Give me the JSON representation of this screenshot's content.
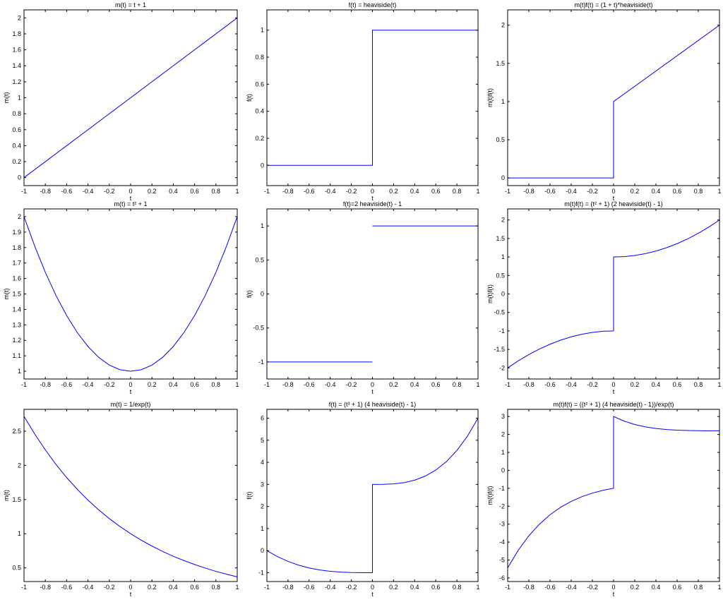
{
  "figure": {
    "line_color": "#0000ff",
    "axis_color": "#000000",
    "background": "#ffffff"
  },
  "chart_data": [
    {
      "type": "line",
      "title": "m(t) = t + 1",
      "xlabel": "t",
      "ylabel": "m(t)",
      "xlim": [
        -1,
        1
      ],
      "ylim": [
        -0.1,
        2.1
      ],
      "xticks": [
        -1,
        -0.8,
        -0.6,
        -0.4,
        -0.2,
        0,
        0.2,
        0.4,
        0.6,
        0.8,
        1
      ],
      "xtick_labels": [
        "-1",
        "-0.8",
        "-0.6",
        "-0.4",
        "-0.2",
        "0",
        "0.2",
        "0.4",
        "0.6",
        "0.8",
        "1"
      ],
      "yticks": [
        0,
        0.2,
        0.4,
        0.6,
        0.8,
        1,
        1.2,
        1.4,
        1.6,
        1.8,
        2
      ],
      "ytick_labels": [
        "0",
        "0.2",
        "0.4",
        "0.6",
        "0.8",
        "1",
        "1.2",
        "1.4",
        "1.6",
        "1.8",
        "2"
      ],
      "series": [
        {
          "x": [
            -1,
            1
          ],
          "y": [
            0,
            2
          ]
        }
      ]
    },
    {
      "type": "line",
      "title": "f(t) = heaviside(t)",
      "xlabel": "t",
      "ylabel": "f(t)",
      "xlim": [
        -1,
        1
      ],
      "ylim": [
        -0.15,
        1.15
      ],
      "xticks": [
        -1,
        -0.8,
        -0.6,
        -0.4,
        -0.2,
        0,
        0.2,
        0.4,
        0.6,
        0.8,
        1
      ],
      "xtick_labels": [
        "-1",
        "-0.8",
        "-0.6",
        "-0.4",
        "-0.2",
        "0",
        "0.2",
        "0.4",
        "0.6",
        "0.8",
        "1"
      ],
      "yticks": [
        0,
        0.2,
        0.4,
        0.6,
        0.8,
        1
      ],
      "ytick_labels": [
        "0",
        "0.2",
        "0.4",
        "0.6",
        "0.8",
        "1"
      ],
      "series": [
        {
          "x": [
            -1,
            0,
            0,
            1
          ],
          "y": [
            0,
            0,
            1,
            1
          ]
        }
      ]
    },
    {
      "type": "line",
      "title": "m(t)f(t) = (1 + t)*heaviside(t)",
      "xlabel": "t",
      "ylabel": "m(t)f(t)",
      "xlim": [
        -1,
        1
      ],
      "ylim": [
        -0.1,
        2.2
      ],
      "xticks": [
        -1,
        -0.8,
        -0.6,
        -0.4,
        -0.2,
        0,
        0.2,
        0.4,
        0.6,
        0.8,
        1
      ],
      "xtick_labels": [
        "-1",
        "-0.8",
        "-0.6",
        "-0.4",
        "-0.2",
        "0",
        "0.2",
        "0.4",
        "0.6",
        "0.8",
        "1"
      ],
      "yticks": [
        0,
        0.5,
        1,
        1.5,
        2
      ],
      "ytick_labels": [
        "0",
        "0.5",
        "1",
        "1.5",
        "2"
      ],
      "series": [
        {
          "x": [
            -1,
            0,
            0,
            1
          ],
          "y": [
            0,
            0,
            1,
            2
          ]
        }
      ]
    },
    {
      "type": "line",
      "title": "m(t) = t² + 1",
      "xlabel": "t",
      "ylabel": "m(t)",
      "xlim": [
        -1,
        1
      ],
      "ylim": [
        0.95,
        2.05
      ],
      "xticks": [
        -1,
        -0.8,
        -0.6,
        -0.4,
        -0.2,
        0,
        0.2,
        0.4,
        0.6,
        0.8,
        1
      ],
      "xtick_labels": [
        "-1",
        "-0.8",
        "-0.6",
        "-0.4",
        "-0.2",
        "0",
        "0.2",
        "0.4",
        "0.6",
        "0.8",
        "1"
      ],
      "yticks": [
        1,
        1.1,
        1.2,
        1.3,
        1.4,
        1.5,
        1.6,
        1.7,
        1.8,
        1.9,
        2
      ],
      "ytick_labels": [
        "1",
        "1.1",
        "1.2",
        "1.3",
        "1.4",
        "1.5",
        "1.6",
        "1.7",
        "1.8",
        "1.9",
        "2"
      ],
      "series": [
        {
          "x": [
            -1,
            -0.9,
            -0.8,
            -0.7,
            -0.6,
            -0.5,
            -0.4,
            -0.3,
            -0.2,
            -0.1,
            0,
            0.1,
            0.2,
            0.3,
            0.4,
            0.5,
            0.6,
            0.7,
            0.8,
            0.9,
            1
          ],
          "y": [
            2,
            1.81,
            1.64,
            1.49,
            1.36,
            1.25,
            1.16,
            1.09,
            1.04,
            1.01,
            1,
            1.01,
            1.04,
            1.09,
            1.16,
            1.25,
            1.36,
            1.49,
            1.64,
            1.81,
            2
          ]
        }
      ]
    },
    {
      "type": "line",
      "title": "f(t)=2 heaviside(t) - 1",
      "xlabel": "t",
      "ylabel": "f(t)",
      "xlim": [
        -1,
        1
      ],
      "ylim": [
        -1.25,
        1.25
      ],
      "xticks": [
        -1,
        -0.8,
        -0.6,
        -0.4,
        -0.2,
        0,
        0.2,
        0.4,
        0.6,
        0.8,
        1
      ],
      "xtick_labels": [
        "-1",
        "-0.8",
        "-0.6",
        "-0.4",
        "-0.2",
        "0",
        "0.2",
        "0.4",
        "0.6",
        "0.8",
        "1"
      ],
      "yticks": [
        -1,
        -0.5,
        0,
        0.5,
        1
      ],
      "ytick_labels": [
        "-1",
        "-0.5",
        "0",
        "0.5",
        "1"
      ],
      "series": [
        {
          "x": [
            -1,
            0
          ],
          "y": [
            -1,
            -1
          ]
        },
        {
          "x": [
            0,
            1
          ],
          "y": [
            1,
            1
          ]
        }
      ]
    },
    {
      "type": "line",
      "title": "m(t)f(t) = (t² + 1) (2 heaviside(t) - 1)",
      "xlabel": "t",
      "ylabel": "m(t)f(t)",
      "xlim": [
        -1,
        1
      ],
      "ylim": [
        -2.3,
        2.3
      ],
      "xticks": [
        -1,
        -0.8,
        -0.6,
        -0.4,
        -0.2,
        0,
        0.2,
        0.4,
        0.6,
        0.8,
        1
      ],
      "xtick_labels": [
        "-1",
        "-0.8",
        "-0.6",
        "-0.4",
        "-0.2",
        "0",
        "0.2",
        "0.4",
        "0.6",
        "0.8",
        "1"
      ],
      "yticks": [
        -2,
        -1.5,
        -1,
        -0.5,
        0,
        0.5,
        1,
        1.5,
        2
      ],
      "ytick_labels": [
        "-2",
        "-1.5",
        "-1",
        "-0.5",
        "0",
        "0.5",
        "1",
        "1.5",
        "2"
      ],
      "series": [
        {
          "x": [
            -1,
            -0.9,
            -0.8,
            -0.7,
            -0.6,
            -0.5,
            -0.4,
            -0.3,
            -0.2,
            -0.1,
            0,
            0,
            0.1,
            0.2,
            0.3,
            0.4,
            0.5,
            0.6,
            0.7,
            0.8,
            0.9,
            1
          ],
          "y": [
            -2,
            -1.81,
            -1.64,
            -1.49,
            -1.36,
            -1.25,
            -1.16,
            -1.09,
            -1.04,
            -1.01,
            -1,
            1,
            1.01,
            1.04,
            1.09,
            1.16,
            1.25,
            1.36,
            1.49,
            1.64,
            1.81,
            2
          ]
        }
      ]
    },
    {
      "type": "line",
      "title": "m(t) = 1/exp(t)",
      "xlabel": "t",
      "ylabel": "m(t)",
      "xlim": [
        -1,
        1
      ],
      "ylim": [
        0.3,
        2.82
      ],
      "xticks": [
        -1,
        -0.8,
        -0.6,
        -0.4,
        -0.2,
        0,
        0.2,
        0.4,
        0.6,
        0.8,
        1
      ],
      "xtick_labels": [
        "-1",
        "-0.8",
        "-0.6",
        "-0.4",
        "-0.2",
        "0",
        "0.2",
        "0.4",
        "0.6",
        "0.8",
        "1"
      ],
      "yticks": [
        0.5,
        1,
        1.5,
        2,
        2.5
      ],
      "ytick_labels": [
        "0.5",
        "1",
        "1.5",
        "2",
        "2.5"
      ],
      "series": [
        {
          "x": [
            -1,
            -0.9,
            -0.8,
            -0.7,
            -0.6,
            -0.5,
            -0.4,
            -0.3,
            -0.2,
            -0.1,
            0,
            0.1,
            0.2,
            0.3,
            0.4,
            0.5,
            0.6,
            0.7,
            0.8,
            0.9,
            1
          ],
          "y": [
            2.718,
            2.46,
            2.226,
            2.014,
            1.822,
            1.649,
            1.492,
            1.35,
            1.221,
            1.105,
            1,
            0.905,
            0.819,
            0.741,
            0.67,
            0.607,
            0.549,
            0.497,
            0.449,
            0.407,
            0.368
          ]
        }
      ]
    },
    {
      "type": "line",
      "title": "f(t) = (t³ + 1) (4 heaviside(t) - 1)",
      "xlabel": "t",
      "ylabel": "f(t)",
      "xlim": [
        -1,
        1
      ],
      "ylim": [
        -1.4,
        6.4
      ],
      "xticks": [
        -1,
        -0.8,
        -0.6,
        -0.4,
        -0.2,
        0,
        0.2,
        0.4,
        0.6,
        0.8,
        1
      ],
      "xtick_labels": [
        "-1",
        "-0.8",
        "-0.6",
        "-0.4",
        "-0.2",
        "0",
        "0.2",
        "0.4",
        "0.6",
        "0.8",
        "1"
      ],
      "yticks": [
        -1,
        0,
        1,
        2,
        3,
        4,
        5,
        6
      ],
      "ytick_labels": [
        "-1",
        "0",
        "1",
        "2",
        "3",
        "4",
        "5",
        "6"
      ],
      "series": [
        {
          "x": [
            -1,
            -0.9,
            -0.8,
            -0.7,
            -0.6,
            -0.5,
            -0.4,
            -0.3,
            -0.2,
            -0.1,
            0,
            0,
            0.1,
            0.2,
            0.3,
            0.4,
            0.5,
            0.6,
            0.7,
            0.8,
            0.9,
            1
          ],
          "y": [
            0,
            -0.271,
            -0.488,
            -0.657,
            -0.784,
            -0.875,
            -0.936,
            -0.973,
            -0.992,
            -0.999,
            -1,
            3,
            3.003,
            3.024,
            3.081,
            3.192,
            3.375,
            3.648,
            4.029,
            4.536,
            5.187,
            6
          ]
        }
      ]
    },
    {
      "type": "line",
      "title": "m(t)f(t) = ((t² + 1) (4 heaviside(t) - 1))/exp(t)",
      "xlabel": "t",
      "ylabel": "m(t)f(t)",
      "xlim": [
        -1,
        1
      ],
      "ylim": [
        -6.2,
        3.4
      ],
      "xticks": [
        -1,
        -0.8,
        -0.6,
        -0.4,
        -0.2,
        0,
        0.2,
        0.4,
        0.6,
        0.8,
        1
      ],
      "xtick_labels": [
        "-1",
        "-0.8",
        "-0.6",
        "-0.4",
        "-0.2",
        "0",
        "0.2",
        "0.4",
        "0.6",
        "0.8",
        "1"
      ],
      "yticks": [
        -6,
        -5,
        -4,
        -3,
        -2,
        -1,
        0,
        1,
        2,
        3
      ],
      "ytick_labels": [
        "-6",
        "-5",
        "-4",
        "-3",
        "-2",
        "-1",
        "0",
        "1",
        "2",
        "3"
      ],
      "series": [
        {
          "x": [
            -1,
            -0.9,
            -0.8,
            -0.7,
            -0.6,
            -0.5,
            -0.4,
            -0.3,
            -0.2,
            -0.1,
            0,
            0,
            0.1,
            0.2,
            0.3,
            0.4,
            0.5,
            0.6,
            0.7,
            0.8,
            0.9,
            1
          ],
          "y": [
            -5.437,
            -4.452,
            -3.651,
            -3.001,
            -2.478,
            -2.061,
            -1.731,
            -1.472,
            -1.27,
            -1.116,
            -1,
            3,
            2.741,
            2.555,
            2.422,
            2.331,
            2.275,
            2.241,
            2.221,
            2.21,
            2.202,
            2.207
          ]
        }
      ]
    }
  ]
}
